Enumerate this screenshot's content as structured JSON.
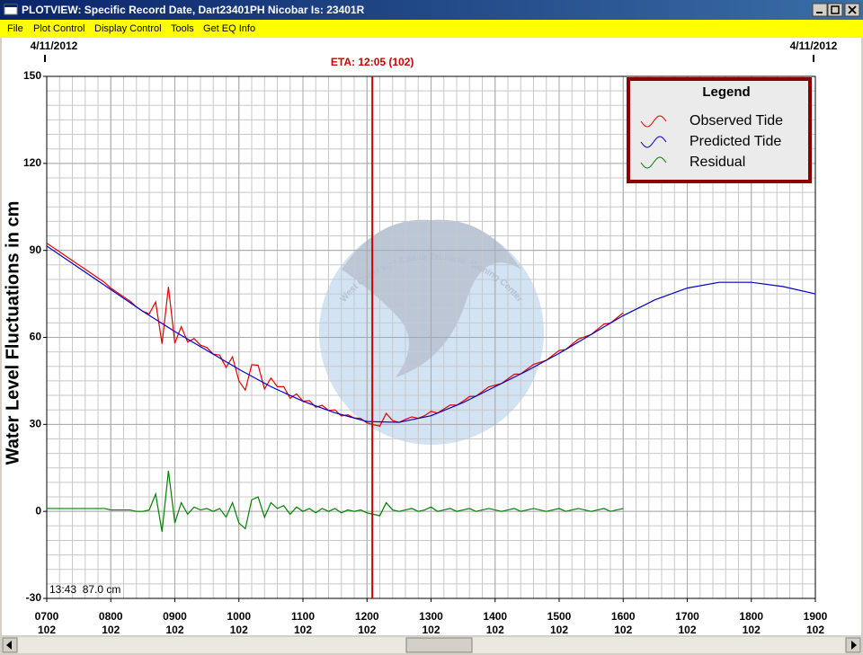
{
  "window": {
    "title": "PLOTVIEW: Specific Record Date, Dart23401PH Nicobar Is: 23401R",
    "menu": [
      "File",
      "Plot Control",
      "Display Control",
      "Tools",
      "Get EQ Info"
    ]
  },
  "chart_data": {
    "type": "line",
    "date_start": "4/11/2012",
    "date_end": "4/11/2012",
    "annotation": {
      "label": "ETA: 12:05 (102)",
      "x": 12.083,
      "color": "#cc0000"
    },
    "ylabel": "Water Level Fluctuations in cm",
    "xlim": [
      7,
      19
    ],
    "ylim": [
      -30,
      150
    ],
    "xticks": [
      {
        "value": 7,
        "label": "0700"
      },
      {
        "value": 8,
        "label": "0800"
      },
      {
        "value": 9,
        "label": "0900"
      },
      {
        "value": 10,
        "label": "1000"
      },
      {
        "value": 11,
        "label": "1100"
      },
      {
        "value": 12,
        "label": "1200",
        "color": "#00008b"
      },
      {
        "value": 13,
        "label": "1300"
      },
      {
        "value": 14,
        "label": "1400"
      },
      {
        "value": 15,
        "label": "1500"
      },
      {
        "value": 16,
        "label": "1600"
      },
      {
        "value": 17,
        "label": "1700"
      },
      {
        "value": 18,
        "label": "1800"
      },
      {
        "value": 19,
        "label": "1900"
      }
    ],
    "xtick_days": [
      "102",
      "102",
      "102",
      "102",
      "102",
      "102",
      "102",
      "102",
      "102",
      "102",
      "102",
      "102",
      "102"
    ],
    "yticks": [
      -30,
      0,
      30,
      60,
      90,
      120,
      150
    ],
    "grid": true,
    "x_minor_step": 0.2,
    "y_minor_step": 5,
    "legend_title": "Legend",
    "legend": "upper right",
    "readout": "13:43  87.0 cm",
    "watermark": "West Coast and Alaska Tsunami Warning Center",
    "series": [
      {
        "name": "Observed Tide",
        "color": "#e00000",
        "x": [
          7.0,
          7.1,
          7.2,
          7.3,
          7.4,
          7.5,
          7.6,
          7.7,
          7.8,
          7.9,
          8.0,
          8.1,
          8.2,
          8.3,
          8.4,
          8.5,
          8.6,
          8.7,
          8.8,
          8.9,
          9.0,
          9.1,
          9.2,
          9.3,
          9.4,
          9.5,
          9.6,
          9.7,
          9.8,
          9.9,
          10.0,
          10.1,
          10.2,
          10.3,
          10.4,
          10.5,
          10.6,
          10.7,
          10.8,
          10.9,
          11.0,
          11.1,
          11.2,
          11.3,
          11.4,
          11.5,
          11.6,
          11.7,
          11.8,
          11.9,
          12.0,
          12.1,
          12.2,
          12.3,
          12.4,
          12.5,
          12.6,
          12.7,
          12.8,
          12.9,
          13.0,
          13.1,
          13.2,
          13.3,
          13.4,
          13.5,
          13.6,
          13.7,
          13.8,
          13.9,
          14.0,
          14.1,
          14.2,
          14.3,
          14.4,
          14.5,
          14.6,
          14.7,
          14.8,
          14.9,
          15.0,
          15.1,
          15.2,
          15.3,
          15.4,
          15.5,
          15.6,
          15.7,
          15.8,
          15.9,
          16.0
        ],
        "values": [
          92.5,
          91,
          89.5,
          88,
          86.5,
          85,
          83.5,
          82,
          80.5,
          79,
          77,
          75.5,
          74,
          72.5,
          70.5,
          69,
          68.1,
          72.2,
          57.8,
          77.4,
          58,
          63.7,
          58.4,
          59.6,
          57.3,
          56.5,
          54.2,
          53.9,
          49.6,
          53.3,
          45,
          41.8,
          50.6,
          50.4,
          42.2,
          46,
          43,
          43,
          39,
          40.5,
          38,
          38.2,
          35.9,
          36.6,
          34.8,
          35,
          32.9,
          33.3,
          32.2,
          32.1,
          30.5,
          29.9,
          29.4,
          33.8,
          31.3,
          30.7,
          31.7,
          32.6,
          32.1,
          33,
          34.5,
          33.9,
          35.3,
          36.7,
          36.6,
          38,
          39.6,
          39.7,
          41.3,
          42.9,
          43.5,
          44.1,
          45.7,
          47.3,
          47.4,
          49,
          50.7,
          51.4,
          52.1,
          53.8,
          55.5,
          55.8,
          57.6,
          59.4,
          60.2,
          61,
          62.8,
          64.6,
          64.9,
          66.7,
          68.5
        ]
      },
      {
        "name": "Predicted Tide",
        "color": "#0000c0",
        "x": [
          7,
          7.5,
          8,
          8.5,
          9,
          9.5,
          10,
          10.5,
          11,
          11.5,
          12,
          12.5,
          13,
          13.5,
          14,
          14.5,
          15,
          15.5,
          16,
          16.5,
          17,
          17.5,
          18,
          18.5,
          19
        ],
        "values": [
          91.5,
          84,
          76.5,
          69,
          62,
          55.5,
          49,
          43,
          38,
          34,
          31,
          30.7,
          33,
          37.5,
          43,
          48.5,
          54.5,
          61,
          67.5,
          73,
          77,
          79,
          79,
          77.5,
          75
        ]
      },
      {
        "name": "Residual",
        "color": "#008000",
        "x": [
          7.0,
          7.1,
          7.2,
          7.3,
          7.4,
          7.5,
          7.6,
          7.7,
          7.8,
          7.9,
          8.0,
          8.1,
          8.2,
          8.3,
          8.4,
          8.5,
          8.6,
          8.7,
          8.8,
          8.9,
          9.0,
          9.1,
          9.2,
          9.3,
          9.4,
          9.5,
          9.6,
          9.7,
          9.8,
          9.9,
          10.0,
          10.1,
          10.2,
          10.3,
          10.4,
          10.5,
          10.6,
          10.7,
          10.8,
          10.9,
          11.0,
          11.1,
          11.2,
          11.3,
          11.4,
          11.5,
          11.6,
          11.7,
          11.8,
          11.9,
          12.0,
          12.1,
          12.2,
          12.3,
          12.4,
          12.5,
          12.6,
          12.7,
          12.8,
          12.9,
          13.0,
          13.1,
          13.2,
          13.3,
          13.4,
          13.5,
          13.6,
          13.7,
          13.8,
          13.9,
          14.0,
          14.1,
          14.2,
          14.3,
          14.4,
          14.5,
          14.6,
          14.7,
          14.8,
          14.9,
          15.0,
          15.1,
          15.2,
          15.3,
          15.4,
          15.5,
          15.6,
          15.7,
          15.8,
          15.9,
          16.0
        ],
        "values": [
          1,
          1,
          1,
          1,
          1,
          1,
          1,
          1,
          1,
          1,
          0.5,
          0.5,
          0.5,
          0.5,
          0,
          0,
          0.5,
          6,
          -7,
          14,
          -4,
          3,
          -1,
          1.5,
          0.5,
          1,
          0,
          1,
          -2,
          3,
          -4,
          -6,
          4,
          5,
          -2,
          3,
          1,
          2,
          -1,
          1.5,
          0,
          1,
          -0.5,
          1,
          0,
          1,
          -0.5,
          0.5,
          0,
          0.5,
          -0.5,
          -1,
          -1.5,
          3,
          0.5,
          0,
          0.5,
          1,
          0,
          0.5,
          1.5,
          0,
          0.5,
          1,
          0,
          0.5,
          1,
          0,
          0.5,
          1,
          0.5,
          0,
          0.5,
          1,
          0,
          0.5,
          1,
          0.5,
          0,
          0.5,
          1,
          0,
          0.5,
          1,
          0.5,
          0,
          0.5,
          1,
          0,
          0.5,
          1
        ]
      }
    ]
  }
}
